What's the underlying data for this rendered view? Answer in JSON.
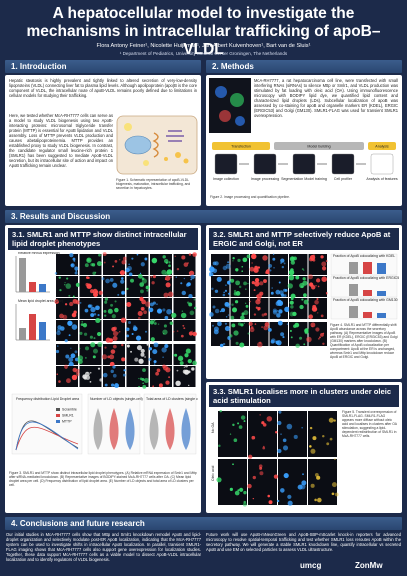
{
  "header": {
    "title": "A hepatocellular model to investigate the mechanisms in intracellular trafficking of apoB–VLDL",
    "authors": "Flora Antony Feiner¹, Nicolette Huijkman¹, Jan-Albert Kuivenhoven¹, Bart van de Sluis¹",
    "affiliation": "¹ Department of Pediatrics, University Medical Center Groningen, The Netherlands"
  },
  "introduction": {
    "heading": "1. Introduction",
    "paragraphs": [
      "Hepatic steatosis is highly prevalent and tightly linked to altered secretion of very-low-density lipoproteins (VLDL) connecting liver fat to plasma lipid levels. Although apolipoprotein (apo)B is the core component of VLDL, the intracellular route of apoB-VLDL remains poorly defined due to limitations in cellular models for studying their trafficking.",
      "Here, we tested whether McA-RH7777 cells can serve as a model to study VLDL biogenesis using two ApoB-interacting proteins: microsomal triglyceride transfer protein (MTTP) is essential for ApoB lipidation and VLDL assembly. Loss of MTTP prevents VLDL production and causes abetalipoproteinemia. MTTP provides an established proxy to study VLDL biogenesis. In contrast, the candidate regulator small leucine-rich protein 1 (SMLR1) has been suggested to mediate ApoB-VLDL secretion, but its intracellular site of action and impact on ApoB trafficking remain unclear."
    ],
    "figure_caption": "Figure 1. Schematic representation of apoB-VLDL biogenesis, maturation, intracellular trafficking, and secretion in hepatocytes."
  },
  "methods": {
    "heading": "2. Methods",
    "paragraph": "McA-RH7777, a rat hepatocarcinoma cell line, were transfected with small interfering RNAs (siRNAs) to silence Mttp or Smlr1, and VLDL production was stimulated by fat loading with oleic acid (OA). Using immunofluorescence microscopy with BODIPY lipid dye, we quantified lipid content and characterized lipid droplets (LDs). Subcellular localization of apoB was assessed by co-staining for apoB and organelle markers ER (KDEL), ERGIC (ERGIC53) and Golgi (GM130). SMLR1-FLAG was used for transient SMLR1 overexpression.",
    "workflow_stages": [
      "Transfection",
      "Model building",
      "Analysis"
    ],
    "workflow_steps": [
      "Image collection",
      "Image processing",
      "Segmentation Model training",
      "Cell profiler",
      "Analysis of features"
    ],
    "figure_caption": "Figure 2. Image processing and quantification pipeline."
  },
  "results": {
    "heading": "3. Results and Discussion",
    "panel_1": {
      "title": "3.1. SMLR1 and MTTP show distinct intracellular lipid droplet phenotypes",
      "chart_labels": [
        "Relative mRNA expression",
        "Mean lipid droplet area (µm²)",
        "Frequency distribution Lipid Droplet area",
        "Number of LD objects (single-cell)",
        "Total area of LD clusters (single cell)"
      ],
      "legend": [
        "Scramble",
        "SMLR1",
        "MTTP"
      ],
      "figure_caption": "Figure 3. SMLR1 and MTTP show distinct intracellular lipid droplet phenotypes. (A) Relative mRNA expression of Smlr1 and Mttp after siRNA-mediated knockdown. (B) Representative images of BODIPY-stained McA-RH7777 cells after OA. (C) Mean lipid droplet area per cell. (D) Frequency distribution of lipid droplet area. (E) Number of LD objects and total area of LD clusters per cell."
    },
    "panel_2": {
      "title": "3.2. SMLR1 and MTTP selectively reduce ApoB at ERGIC and Golgi, not ER",
      "chart_labels": [
        "Fraction of ApoB colocalizing with KDEL",
        "Fraction of ApoB colocalizing with ERGIC53",
        "Fraction of ApoB colocalizing with GM130"
      ],
      "figure_caption": "Figure 4. SMLR1 and MTTP differentially shift ApoB abundance across the secretory pathway. (A) Representative images of ApoB with ER (KDEL), ERGIC (ERGIC53) and Golgi (GM130) markers after knockdown. (B) Quantification of ApoB colocalization per compartment: ApoB at the ER is unchanged, whereas Smlr1 and Mttp knockdown reduce ApoB at ERGIC and Golgi."
    },
    "panel_3": {
      "title": "3.3. SMLR1 localises more in clusters under oleic acid stimulation",
      "row_labels": [
        "No OA",
        "Oleic acid"
      ],
      "figure_caption": "Figure 5. Transient overexpression of SMLR1-FLAG. SMLR1-FLAG appears more diffuse without oleic acid and localises in clusters after OA stimulation, suggesting a lipid-dependent redistribution of SMLR1 in McA-RH7777 cells."
    }
  },
  "conclusions": {
    "heading": "4. Conclusions and future research",
    "paragraphs": [
      "Our initial studies in McA-RH7777 cells show that Mttp and Smlr1 knockdown remodel ApoB and lipid-droplet organization and selectively modulate post-ER ApoB localization, indicating that the McA-RH7777 system can be used to investigate shifts in intracellular ApoB localization. In parallel, transient SMLR1-FLAG imaging shows that McA-RH7777 cells also support gene overexpression for localization studies. Together, these data support McA-RH7777 cells as a viable model to dissect ApoB-VLDL intracellular localization and to identify regulators of VLDL biogenesis.",
      "Future work will use ApoB-mNeonGreen and ApoB-SBP-mScarlet knock-in reporters for advanced microscopy to resolve spatial-temporal trafficking and test whether SMLR1 loss reroutes ApoB within the secretory pathway. We will generate a stable SMLR1 knockdown line, quantify intracellular vs secreted ApoB and use EM on selected particles to assess VLDL ultrastructure."
    ],
    "logos": [
      "umcg",
      "ZonMw"
    ]
  }
}
